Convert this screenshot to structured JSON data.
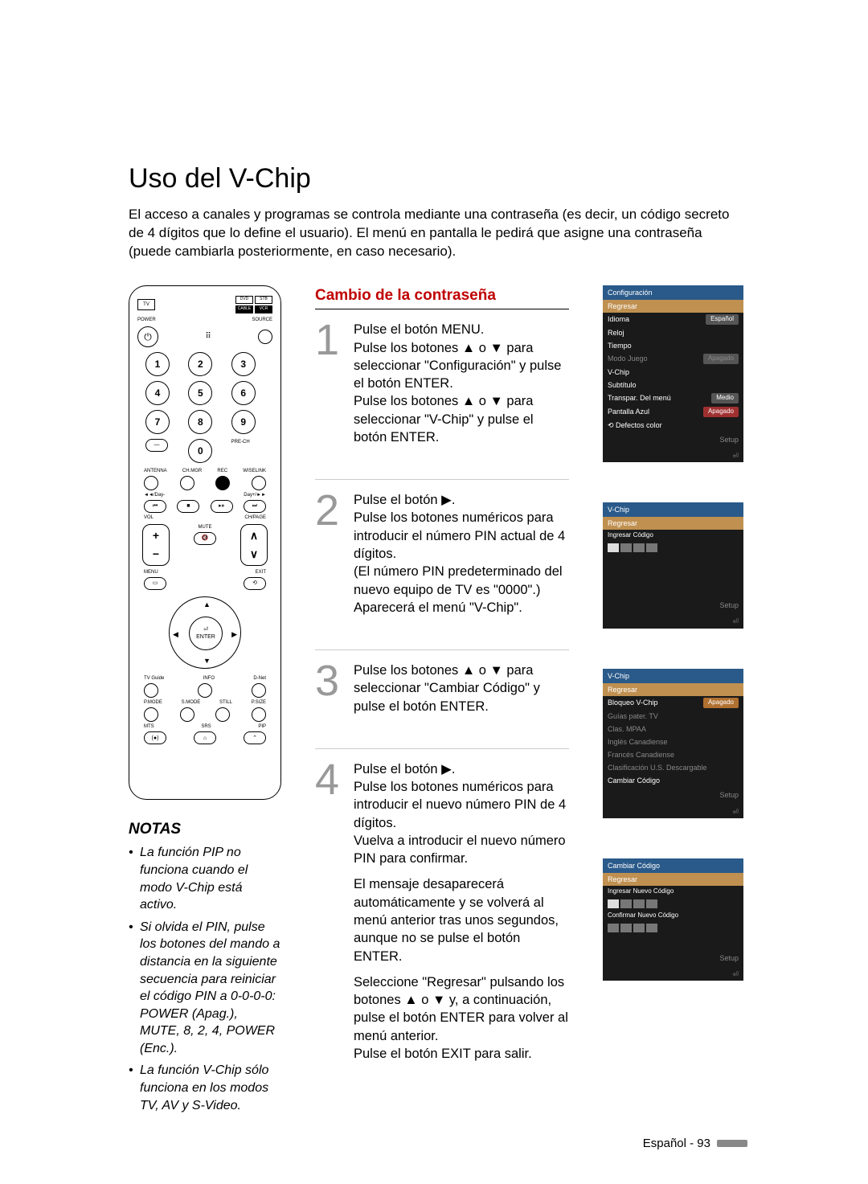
{
  "title": "Uso del V-Chip",
  "intro": "El acceso a canales y programas se controla mediante una contraseña (es decir, un código secreto de 4 dígitos que lo define el usuario). El menú en pantalla le pedirá que asigne una contraseña (puede cambiarla posteriormente, en caso necesario).",
  "section_title": "Cambio de la contraseña",
  "remote": {
    "tv": "TV",
    "dvd": "DVD",
    "stb": "STB",
    "cable": "CABLE",
    "vcr": "VCR",
    "power": "POWER",
    "source": "SOURCE",
    "pre_ch": "PRE-CH",
    "labels": {
      "antenna": "ANTENNA",
      "chmgr": "CH.MGR",
      "rec": "REC",
      "wiselink": "WISELINK",
      "vol": "VOL",
      "chpage": "CH/PAGE",
      "mute": "MUTE",
      "menu": "MENU",
      "exit": "EXIT",
      "enter": "ENTER",
      "tvguide": "TV Guide",
      "info": "INFO",
      "dnet": "D-Net",
      "pmode": "P.MODE",
      "smode": "S.MODE",
      "still": "STILL",
      "psize": "P.SIZE",
      "mts": "MTS",
      "srs": "SRS",
      "pip": "PIP",
      "dayminus": "◄◄/Day-",
      "dayplus": "Day+/►►"
    }
  },
  "notes_title": "NOTAS",
  "notes": [
    "La función PIP no funciona cuando el modo V-Chip está activo.",
    "Si olvida el PIN, pulse los botones del mando a distancia en la siguiente secuencia para reiniciar el código PIN a 0-0-0-0: POWER (Apag.), MUTE, 8, 2, 4, POWER (Enc.).",
    "La función V-Chip sólo funciona en los modos TV, AV y S-Video."
  ],
  "steps": {
    "s1": {
      "num": "1",
      "t1": "Pulse el botón MENU.\nPulse los botones ▲ o ▼ para seleccionar \"Configuración\" y pulse el botón ENTER.\nPulse los botones ▲ o ▼ para seleccionar \"V-Chip\" y pulse el botón ENTER."
    },
    "s2": {
      "num": "2",
      "t1": "Pulse el botón ▶.\nPulse los botones numéricos para introducir el número PIN actual de 4 dígitos.\n(El número PIN predeterminado del nuevo equipo de TV es \"0000\".)\nAparecerá el menú \"V-Chip\"."
    },
    "s3": {
      "num": "3",
      "t1": "Pulse los botones ▲ o ▼ para seleccionar \"Cambiar Código\" y pulse el botón ENTER."
    },
    "s4": {
      "num": "4",
      "t1": "Pulse el botón ▶.\nPulse los botones numéricos para introducir el nuevo número PIN de 4 dígitos.\nVuelva a introducir el nuevo número PIN para confirmar.",
      "t2": "El mensaje desaparecerá automáticamente y se volverá al menú anterior tras unos segundos, aunque no se pulse el botón ENTER.",
      "t3": "Seleccione \"Regresar\" pulsando los botones ▲ o ▼ y, a continuación, pulse el botón ENTER para volver al menú anterior.\nPulse el botón EXIT para salir."
    }
  },
  "osd1": {
    "title": "Configuración",
    "regresar": "Regresar",
    "rows": [
      [
        "Idioma",
        "Español",
        "pill"
      ],
      [
        "Reloj",
        "",
        ""
      ],
      [
        "Tiempo",
        "",
        ""
      ],
      [
        "Modo Juego",
        "Apagado",
        "dim"
      ],
      [
        "V-Chip",
        "",
        ""
      ],
      [
        "Subtítulo",
        "",
        ""
      ],
      [
        "Transpar. Del menú",
        "Medio",
        "pill"
      ],
      [
        "Pantalla Azul",
        "Apagado",
        "red"
      ]
    ],
    "footer_row": [
      "⟲ Defectos color",
      "",
      ""
    ],
    "setup": "Setup"
  },
  "osd2": {
    "title": "V-Chip",
    "regresar": "Regresar",
    "ingresar": "Ingresar Código",
    "setup": "Setup"
  },
  "osd3": {
    "title": "V-Chip",
    "regresar": "Regresar",
    "rows": [
      [
        "Bloqueo V-Chip",
        "Apagado",
        "amber"
      ],
      [
        "Guías pater. TV",
        "",
        "dim"
      ],
      [
        "Clas. MPAA",
        "",
        "dim"
      ],
      [
        "Inglés Canadiense",
        "",
        "dim"
      ],
      [
        "Francés Canadiense",
        "",
        "dim"
      ],
      [
        "Clasificación U.S. Descargable",
        "",
        "dim"
      ],
      [
        "Cambiar Código",
        "",
        ""
      ]
    ],
    "setup": "Setup"
  },
  "osd4": {
    "title": "Cambiar Código",
    "regresar": "Regresar",
    "ing_nuevo": "Ingresar Nuevo Código",
    "conf_nuevo": "Confirmar Nuevo Código",
    "setup": "Setup"
  },
  "footer": "Español - 93"
}
